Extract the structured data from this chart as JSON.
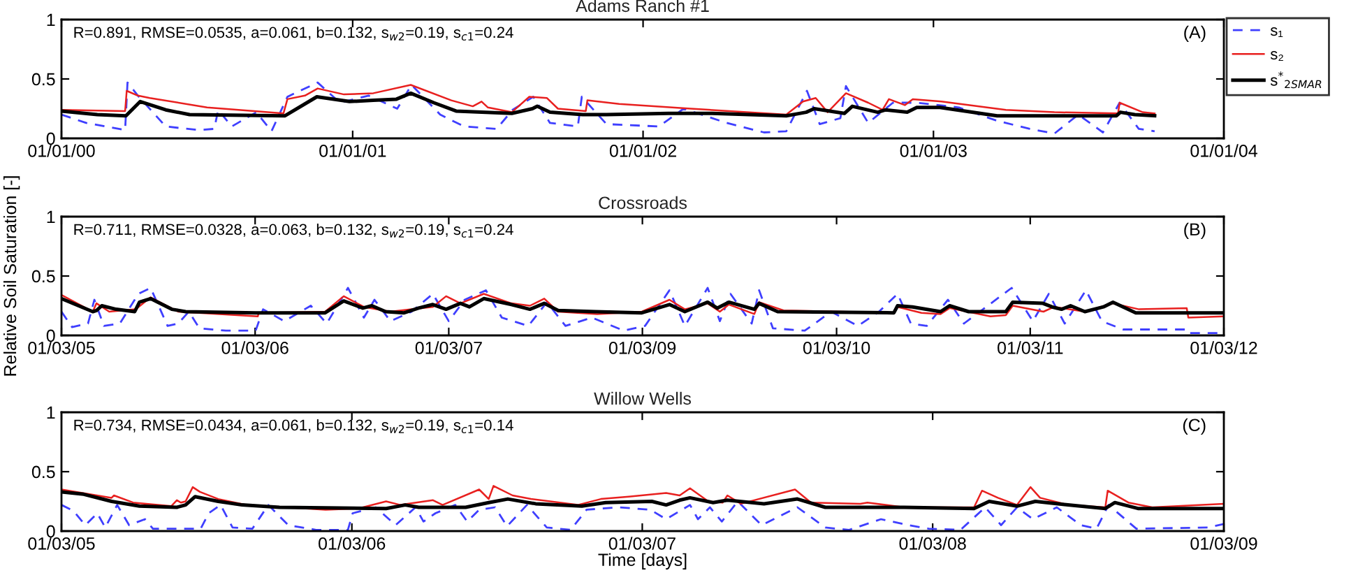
{
  "chart_data": [
    {
      "type": "line",
      "title": "Adams Ranch #1",
      "annotations": [
        "R=0.891, RMSE=0.0535, a=0.061, b=0.132, s$_{w2}$=0.19, s$_{c1}$=0.24",
        "(A)"
      ],
      "xlim": [
        "2000-01-01",
        "2004-01-01"
      ],
      "xticks": [
        {
          "value": "2000-01-01",
          "label": "01/01/00"
        },
        {
          "value": "2001-01-01",
          "label": "01/01/01"
        },
        {
          "value": "2002-01-01",
          "label": "01/01/02"
        },
        {
          "value": "2003-01-01",
          "label": "01/01/03"
        },
        {
          "value": "2004-01-01",
          "label": "01/01/04"
        }
      ],
      "ylim": [
        0,
        1
      ],
      "yticks": [
        0,
        0.5,
        1
      ],
      "legend": "right",
      "series": [
        {
          "name": "s₁",
          "color": "#3f3fff",
          "line_style": "dashed",
          "x": [
            "2000-01-01",
            "2000-02-01",
            "2000-03-21",
            "2000-03-24",
            "2000-04-06",
            "2000-05-11",
            "2000-06-21",
            "2000-07-11",
            "2000-07-16",
            "2000-08-02",
            "2000-09-02",
            "2000-09-21",
            "2000-10-11",
            "2000-11-18",
            "2000-12-16",
            "2001-01-21",
            "2001-02-26",
            "2001-03-16",
            "2001-04-21",
            "2001-05-21",
            "2001-07-01",
            "2001-07-21",
            "2001-08-16",
            "2001-09-06",
            "2001-10-11",
            "2001-10-16",
            "2001-11-16",
            "2002-01-21",
            "2002-02-21",
            "2002-04-16",
            "2002-06-02",
            "2002-06-30",
            "2002-07-26",
            "2002-08-11",
            "2002-09-06",
            "2002-09-13",
            "2002-10-11",
            "2002-11-11",
            "2002-12-11",
            "2003-02-02",
            "2003-03-21",
            "2003-05-02",
            "2003-06-02",
            "2003-07-02",
            "2003-08-02",
            "2003-08-23",
            "2003-09-16",
            "2003-10-06"
          ],
          "values": [
            0.2,
            0.13,
            0.07,
            0.47,
            0.36,
            0.1,
            0.07,
            0.08,
            0.24,
            0.1,
            0.22,
            0.06,
            0.35,
            0.47,
            0.3,
            0.36,
            0.25,
            0.45,
            0.2,
            0.1,
            0.08,
            0.24,
            0.35,
            0.13,
            0.1,
            0.35,
            0.12,
            0.1,
            0.25,
            0.13,
            0.05,
            0.06,
            0.4,
            0.12,
            0.17,
            0.44,
            0.13,
            0.3,
            0.3,
            0.26,
            0.15,
            0.08,
            0.04,
            0.2,
            0.05,
            0.3,
            0.08,
            0.06
          ]
        },
        {
          "name": "s₂",
          "color": "#e8201f",
          "line_style": "solid",
          "x": [
            "2000-01-01",
            "2000-03-21",
            "2000-03-23",
            "2000-04-06",
            "2000-04-21",
            "2000-07-02",
            "2000-10-06",
            "2000-10-11",
            "2000-11-02",
            "2000-11-18",
            "2000-12-21",
            "2001-01-27",
            "2001-03-15",
            "2001-05-05",
            "2001-06-01",
            "2001-06-12",
            "2001-06-20",
            "2001-07-20",
            "2001-08-11",
            "2001-09-02",
            "2001-09-16",
            "2001-10-21",
            "2001-10-23",
            "2001-12-02",
            "2002-03-02",
            "2002-06-30",
            "2002-07-21",
            "2002-08-06",
            "2002-08-21",
            "2002-09-13",
            "2002-10-11",
            "2002-10-29",
            "2002-11-06",
            "2002-11-26",
            "2002-12-06",
            "2003-01-11",
            "2003-04-02",
            "2003-06-02",
            "2003-08-21",
            "2003-08-23",
            "2003-09-21",
            "2003-10-06"
          ],
          "values": [
            0.24,
            0.23,
            0.4,
            0.36,
            0.34,
            0.26,
            0.21,
            0.33,
            0.36,
            0.42,
            0.37,
            0.38,
            0.45,
            0.32,
            0.27,
            0.31,
            0.26,
            0.22,
            0.35,
            0.34,
            0.25,
            0.23,
            0.32,
            0.29,
            0.25,
            0.2,
            0.31,
            0.34,
            0.22,
            0.38,
            0.3,
            0.24,
            0.33,
            0.28,
            0.33,
            0.31,
            0.24,
            0.22,
            0.21,
            0.3,
            0.22,
            0.21
          ]
        },
        {
          "name": "s$^{*}$$_{2SMAR}$",
          "color": "#000000",
          "line_style": "solid",
          "x": [
            "2000-01-01",
            "2000-02-15",
            "2000-03-22",
            "2000-04-09",
            "2000-05-11",
            "2000-06-10",
            "2000-10-08",
            "2000-11-17",
            "2000-12-28",
            "2001-01-27",
            "2001-02-25",
            "2001-03-15",
            "2001-04-13",
            "2001-05-11",
            "2001-07-20",
            "2001-08-15",
            "2001-08-21",
            "2001-09-06",
            "2001-10-17",
            "2001-11-16",
            "2002-02-02",
            "2002-03-29",
            "2002-06-30",
            "2002-07-25",
            "2002-08-04",
            "2002-09-11",
            "2002-09-21",
            "2002-10-23",
            "2002-11-02",
            "2002-11-29",
            "2002-12-11",
            "2003-01-09",
            "2003-03-22",
            "2003-08-19",
            "2003-08-24",
            "2003-09-11",
            "2003-10-06"
          ],
          "values": [
            0.23,
            0.2,
            0.19,
            0.31,
            0.24,
            0.2,
            0.19,
            0.35,
            0.31,
            0.32,
            0.33,
            0.38,
            0.3,
            0.23,
            0.21,
            0.25,
            0.27,
            0.22,
            0.2,
            0.2,
            0.21,
            0.21,
            0.19,
            0.22,
            0.25,
            0.21,
            0.27,
            0.22,
            0.24,
            0.22,
            0.26,
            0.26,
            0.19,
            0.19,
            0.22,
            0.2,
            0.19
          ]
        }
      ]
    },
    {
      "type": "line",
      "title": "Crossroads",
      "ylabel": "Relative Soil Saturation [-]",
      "annotations": [
        "R=0.711, RMSE=0.0328, a=0.063, b=0.132, s$_{w2}$=0.19, s$_{c1}$=0.24",
        "(B)"
      ],
      "xlim": [
        "2005-01-03",
        "2011-01-03"
      ],
      "xticks": [
        {
          "value": "2005-01-03",
          "label": "01/03/05"
        },
        {
          "value": "2006-01-03",
          "label": "01/03/06"
        },
        {
          "value": "2007-01-03",
          "label": "01/03/07"
        },
        {
          "value": "2008-01-03",
          "label": "01/03/09"
        },
        {
          "value": "2009-01-03",
          "label": "01/03/10"
        },
        {
          "value": "2010-01-03",
          "label": "01/03/11"
        },
        {
          "value": "2011-01-03",
          "label": "01/03/12"
        }
      ],
      "ylim": [
        0,
        1
      ],
      "yticks": [
        0,
        0.5,
        1
      ],
      "series": [
        {
          "color": "#3f3fff",
          "line_style": "dashed",
          "x": [
            "2005-01-03",
            "2005-01-23",
            "2005-02-22",
            "2005-03-06",
            "2005-03-24",
            "2005-04-23",
            "2005-05-28",
            "2005-06-20",
            "2005-07-22",
            "2005-08-11",
            "2005-08-31",
            "2005-09-20",
            "2005-11-09",
            "2006-01-04",
            "2006-01-18",
            "2006-02-27",
            "2006-04-18",
            "2006-05-18",
            "2006-06-27",
            "2006-07-27",
            "2006-08-16",
            "2006-09-15",
            "2006-10-25",
            "2006-12-04",
            "2007-01-03",
            "2007-02-02",
            "2007-03-14",
            "2007-04-13",
            "2007-06-02",
            "2007-07-07",
            "2007-08-11",
            "2007-09-30",
            "2007-11-29",
            "2008-01-08",
            "2008-02-23",
            "2008-03-23",
            "2008-05-05",
            "2008-05-28",
            "2008-06-17",
            "2008-07-27",
            "2008-08-10",
            "2008-09-05",
            "2008-11-04",
            "2008-12-24",
            "2009-02-12",
            "2009-03-24",
            "2009-04-28",
            "2009-05-23",
            "2009-06-22",
            "2009-08-01",
            "2009-08-31",
            "2009-09-30",
            "2009-11-29",
            "2010-01-08",
            "2010-02-07",
            "2010-03-09",
            "2010-04-18",
            "2010-05-18",
            "2010-06-27",
            "2010-10-25",
            "2010-10-28",
            "2011-01-03"
          ],
          "values": [
            0.2,
            0.07,
            0.1,
            0.3,
            0.08,
            0.1,
            0.35,
            0.4,
            0.08,
            0.1,
            0.2,
            0.06,
            0.04,
            0.04,
            0.22,
            0.12,
            0.25,
            0.1,
            0.4,
            0.15,
            0.3,
            0.12,
            0.2,
            0.35,
            0.12,
            0.3,
            0.38,
            0.15,
            0.08,
            0.28,
            0.08,
            0.15,
            0.04,
            0.08,
            0.38,
            0.08,
            0.4,
            0.12,
            0.35,
            0.1,
            0.38,
            0.06,
            0.04,
            0.2,
            0.08,
            0.2,
            0.35,
            0.1,
            0.08,
            0.3,
            0.1,
            0.2,
            0.4,
            0.12,
            0.35,
            0.1,
            0.38,
            0.12,
            0.05,
            0.05,
            0.02,
            0.02
          ]
        },
        {
          "color": "#e8201f",
          "line_style": "solid",
          "x": [
            "2005-01-03",
            "2005-03-03",
            "2005-03-10",
            "2005-04-03",
            "2005-05-23",
            "2005-06-20",
            "2005-08-11",
            "2006-01-08",
            "2006-01-10",
            "2006-05-15",
            "2006-06-19",
            "2006-07-27",
            "2006-09-15",
            "2006-10-25",
            "2006-12-04",
            "2006-12-29",
            "2007-01-25",
            "2007-03-10",
            "2007-05-01",
            "2007-06-05",
            "2007-07-02",
            "2007-07-28",
            "2007-10-10",
            "2008-01-02",
            "2008-02-23",
            "2008-03-23",
            "2008-05-05",
            "2008-05-28",
            "2008-06-14",
            "2008-08-01",
            "2008-08-10",
            "2008-09-25",
            "2009-04-21",
            "2009-04-28",
            "2009-06-12",
            "2009-07-18",
            "2009-08-04",
            "2009-10-20",
            "2009-11-18",
            "2009-12-01",
            "2010-01-28",
            "2010-02-17",
            "2010-04-16",
            "2010-06-08",
            "2010-07-27",
            "2010-10-25",
            "2010-10-28",
            "2011-01-03"
          ],
          "values": [
            0.34,
            0.2,
            0.27,
            0.2,
            0.22,
            0.32,
            0.2,
            0.16,
            0.19,
            0.2,
            0.33,
            0.24,
            0.2,
            0.22,
            0.24,
            0.33,
            0.27,
            0.35,
            0.27,
            0.25,
            0.31,
            0.2,
            0.18,
            0.2,
            0.3,
            0.22,
            0.27,
            0.2,
            0.26,
            0.18,
            0.28,
            0.21,
            0.19,
            0.24,
            0.19,
            0.18,
            0.23,
            0.16,
            0.17,
            0.25,
            0.2,
            0.24,
            0.2,
            0.27,
            0.22,
            0.23,
            0.15,
            0.16
          ]
        },
        {
          "color": "#000000",
          "line_style": "solid",
          "x": [
            "2005-01-03",
            "2005-03-03",
            "2005-03-10",
            "2005-03-20",
            "2005-04-16",
            "2005-05-21",
            "2005-05-30",
            "2005-06-20",
            "2005-07-30",
            "2005-08-25",
            "2006-01-04",
            "2006-05-15",
            "2006-06-19",
            "2006-07-25",
            "2006-08-11",
            "2006-09-06",
            "2006-10-11",
            "2006-11-07",
            "2006-12-04",
            "2006-12-29",
            "2007-01-25",
            "2007-02-11",
            "2007-03-10",
            "2007-05-01",
            "2007-06-05",
            "2007-07-02",
            "2007-07-28",
            "2007-10-06",
            "2008-01-02",
            "2008-02-23",
            "2008-03-23",
            "2008-05-05",
            "2008-05-23",
            "2008-06-14",
            "2008-08-01",
            "2008-08-10",
            "2008-09-14",
            "2009-04-21",
            "2009-04-28",
            "2009-05-26",
            "2009-07-18",
            "2009-08-04",
            "2009-09-09",
            "2009-11-18",
            "2009-12-01",
            "2010-01-27",
            "2010-02-13",
            "2010-03-03",
            "2010-03-20",
            "2010-04-16",
            "2010-05-21",
            "2010-06-08",
            "2010-07-21",
            "2011-01-03"
          ],
          "values": [
            0.31,
            0.2,
            0.21,
            0.25,
            0.22,
            0.2,
            0.28,
            0.31,
            0.22,
            0.2,
            0.19,
            0.19,
            0.29,
            0.23,
            0.25,
            0.2,
            0.19,
            0.23,
            0.26,
            0.22,
            0.27,
            0.24,
            0.31,
            0.26,
            0.22,
            0.27,
            0.21,
            0.2,
            0.19,
            0.26,
            0.2,
            0.28,
            0.23,
            0.28,
            0.22,
            0.27,
            0.2,
            0.19,
            0.25,
            0.24,
            0.2,
            0.25,
            0.2,
            0.2,
            0.28,
            0.27,
            0.24,
            0.22,
            0.25,
            0.2,
            0.24,
            0.28,
            0.19,
            0.19
          ]
        }
      ]
    },
    {
      "type": "line",
      "title": "Willow Wells",
      "xlabel": "Time [days]",
      "annotations": [
        "R=0.734, RMSE=0.0434, a=0.061, b=0.132, s$_{w2}$=0.19, s$_{c1}$=0.14",
        "(C)"
      ],
      "xlim": [
        "2005-01-03",
        "2009-01-03"
      ],
      "xticks": [
        {
          "value": "2005-01-03",
          "label": "01/03/05"
        },
        {
          "value": "2006-01-03",
          "label": "01/03/06"
        },
        {
          "value": "2007-01-03",
          "label": "01/03/07"
        },
        {
          "value": "2008-01-03",
          "label": "01/03/08"
        },
        {
          "value": "2009-01-03",
          "label": "01/03/09"
        }
      ],
      "ylim": [
        0,
        1
      ],
      "yticks": [
        0,
        0.5,
        1
      ],
      "series": [
        {
          "color": "#3f3fff",
          "line_style": "dashed",
          "x": [
            "2005-01-03",
            "2005-01-18",
            "2005-02-02",
            "2005-02-17",
            "2005-02-27",
            "2005-03-14",
            "2005-03-29",
            "2005-04-18",
            "2005-04-28",
            "2005-06-27",
            "2005-07-07",
            "2005-07-22",
            "2005-08-06",
            "2005-08-31",
            "2005-09-20",
            "2005-10-15",
            "2005-11-19",
            "2005-12-29",
            "2006-01-04",
            "2006-02-02",
            "2006-02-27",
            "2006-03-24",
            "2006-04-03",
            "2006-04-18",
            "2006-05-13",
            "2006-05-28",
            "2006-06-12",
            "2006-07-02",
            "2006-07-17",
            "2006-08-11",
            "2006-09-05",
            "2006-10-05",
            "2006-10-25",
            "2006-12-04",
            "2007-01-13",
            "2007-02-02",
            "2007-03-04",
            "2007-03-14",
            "2007-03-29",
            "2007-04-13",
            "2007-05-03",
            "2007-06-02",
            "2007-07-17",
            "2007-08-21",
            "2007-09-20",
            "2007-10-30",
            "2007-12-04",
            "2007-12-29",
            "2008-02-07",
            "2008-03-09",
            "2008-03-29",
            "2008-04-18",
            "2008-05-08",
            "2008-06-07",
            "2008-07-07",
            "2008-07-27",
            "2008-08-11",
            "2008-09-15",
            "2008-12-14",
            "2009-01-03"
          ],
          "values": [
            0.22,
            0.17,
            0.05,
            0.15,
            0.03,
            0.22,
            0.05,
            0.1,
            0.02,
            0.02,
            0.15,
            0.22,
            0.03,
            0.02,
            0.22,
            0.05,
            0.01,
            0.01,
            0.15,
            0.2,
            0.05,
            0.2,
            0.08,
            0.15,
            0.22,
            0.08,
            0.18,
            0.2,
            0.04,
            0.22,
            0.03,
            0.01,
            0.18,
            0.2,
            0.18,
            0.1,
            0.22,
            0.1,
            0.2,
            0.08,
            0.25,
            0.05,
            0.2,
            0.03,
            0.01,
            0.1,
            0.05,
            0.02,
            0.01,
            0.2,
            0.05,
            0.2,
            0.1,
            0.2,
            0.05,
            0.02,
            0.22,
            0.02,
            0.03,
            0.06
          ]
        },
        {
          "color": "#e8201f",
          "line_style": "solid",
          "x": [
            "2005-01-03",
            "2005-03-07",
            "2005-03-10",
            "2005-04-03",
            "2005-05-04",
            "2005-05-21",
            "2005-05-28",
            "2005-06-02",
            "2005-06-08",
            "2005-06-17",
            "2005-06-26",
            "2005-07-19",
            "2005-08-24",
            "2005-12-01",
            "2006-01-11",
            "2006-02-15",
            "2006-03-05",
            "2006-04-15",
            "2006-04-27",
            "2006-06-12",
            "2006-06-24",
            "2006-06-30",
            "2006-07-24",
            "2006-08-16",
            "2006-10-14",
            "2006-11-12",
            "2006-12-17",
            "2007-02-02",
            "2007-02-19",
            "2007-03-04",
            "2007-03-27",
            "2007-04-14",
            "2007-04-20",
            "2007-05-07",
            "2007-07-14",
            "2007-08-03",
            "2007-10-04",
            "2007-10-13",
            "2007-11-28",
            "2008-02-24",
            "2008-03-05",
            "2008-03-25",
            "2008-04-18",
            "2008-05-05",
            "2008-05-17",
            "2008-06-21",
            "2008-08-07",
            "2008-08-10",
            "2008-09-05",
            "2008-10-05",
            "2009-01-03"
          ],
          "values": [
            0.35,
            0.28,
            0.3,
            0.24,
            0.22,
            0.21,
            0.26,
            0.24,
            0.25,
            0.37,
            0.33,
            0.27,
            0.22,
            0.18,
            0.19,
            0.25,
            0.22,
            0.26,
            0.22,
            0.35,
            0.27,
            0.38,
            0.3,
            0.27,
            0.22,
            0.27,
            0.29,
            0.32,
            0.3,
            0.36,
            0.25,
            0.24,
            0.3,
            0.23,
            0.35,
            0.24,
            0.23,
            0.24,
            0.2,
            0.2,
            0.34,
            0.28,
            0.22,
            0.37,
            0.28,
            0.22,
            0.2,
            0.34,
            0.24,
            0.2,
            0.23
          ]
        },
        {
          "color": "#000000",
          "line_style": "solid",
          "x": [
            "2005-01-03",
            "2005-01-31",
            "2005-03-07",
            "2005-04-11",
            "2005-05-28",
            "2005-06-08",
            "2005-06-20",
            "2005-07-19",
            "2005-08-18",
            "2005-10-04",
            "2006-02-15",
            "2006-03-11",
            "2006-03-28",
            "2006-05-26",
            "2006-06-24",
            "2006-07-18",
            "2006-08-22",
            "2006-10-19",
            "2006-11-18",
            "2007-01-15",
            "2007-02-02",
            "2007-02-19",
            "2007-03-04",
            "2007-04-02",
            "2007-04-20",
            "2007-06-05",
            "2007-07-17",
            "2007-08-21",
            "2007-11-28",
            "2008-02-24",
            "2008-03-14",
            "2008-04-18",
            "2008-05-11",
            "2008-06-21",
            "2008-08-07",
            "2008-08-19",
            "2008-09-17",
            "2009-01-03"
          ],
          "values": [
            0.33,
            0.31,
            0.25,
            0.21,
            0.2,
            0.22,
            0.29,
            0.25,
            0.22,
            0.2,
            0.19,
            0.22,
            0.2,
            0.2,
            0.24,
            0.27,
            0.23,
            0.21,
            0.24,
            0.25,
            0.22,
            0.26,
            0.28,
            0.24,
            0.26,
            0.23,
            0.27,
            0.2,
            0.2,
            0.19,
            0.25,
            0.21,
            0.25,
            0.22,
            0.19,
            0.24,
            0.19,
            0.19
          ]
        }
      ]
    }
  ]
}
